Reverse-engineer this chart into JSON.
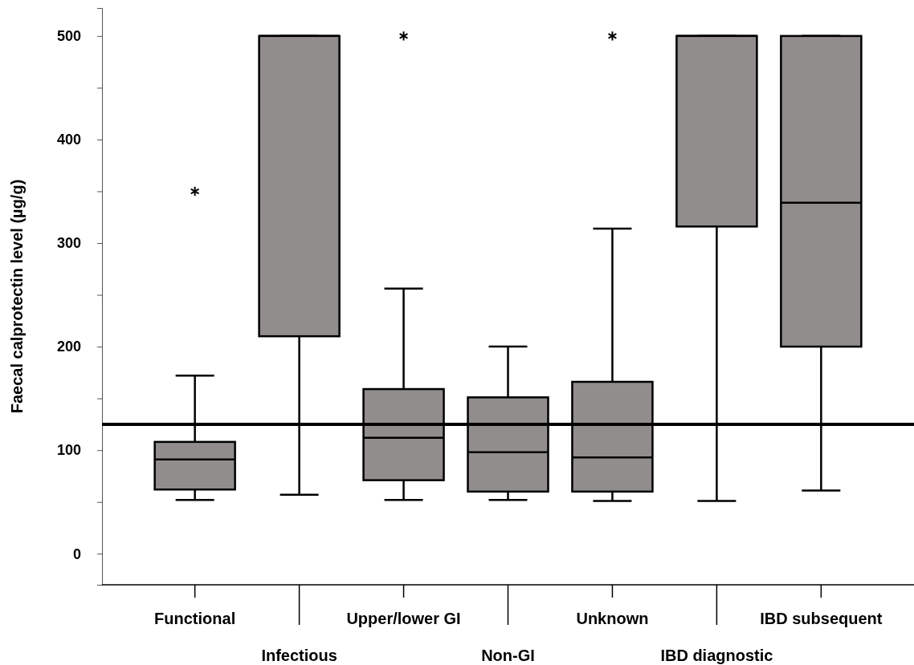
{
  "chart_data": {
    "type": "box",
    "ylabel": "Faecal calprotectin level (µg/g)",
    "categories": [
      "Functional",
      "Infectious",
      "Upper/lower GI",
      "Non-GI",
      "Unknown",
      "IBD diagnostic",
      "IBD subsequent"
    ],
    "color": "#918d8c",
    "boxes": [
      {
        "low": 52,
        "q1": 62,
        "median": 91,
        "q3": 108,
        "high": 172,
        "outliers": [
          350
        ]
      },
      {
        "low": 57,
        "q1": 210,
        "median": 500,
        "q3": 500,
        "high": 500
      },
      {
        "low": 52,
        "q1": 71,
        "median": 112,
        "q3": 159,
        "high": 256,
        "outliers": [
          500
        ]
      },
      {
        "low": 52,
        "q1": 60,
        "median": 98,
        "q3": 151,
        "high": 200
      },
      {
        "low": 51,
        "q1": 60,
        "median": 93,
        "q3": 166,
        "high": 314,
        "outliers": [
          500
        ]
      },
      {
        "low": 51,
        "q1": 316,
        "median": 500,
        "q3": 500,
        "high": 500
      },
      {
        "low": 61,
        "q1": 200,
        "median": 339,
        "q3": 500,
        "high": 500
      }
    ],
    "ylim": [
      -30,
      527
    ],
    "yticks": [
      0,
      {
        "value": 50,
        "label": null
      },
      100,
      {
        "value": 150,
        "label": null
      },
      200,
      {
        "value": 250,
        "label": null
      },
      300,
      {
        "value": 350,
        "label": null
      },
      400,
      {
        "value": 450,
        "label": null
      },
      500
    ],
    "ref_lines": [
      {
        "axis": "y",
        "value": 125,
        "color": "#000000"
      }
    ],
    "grid": false
  }
}
